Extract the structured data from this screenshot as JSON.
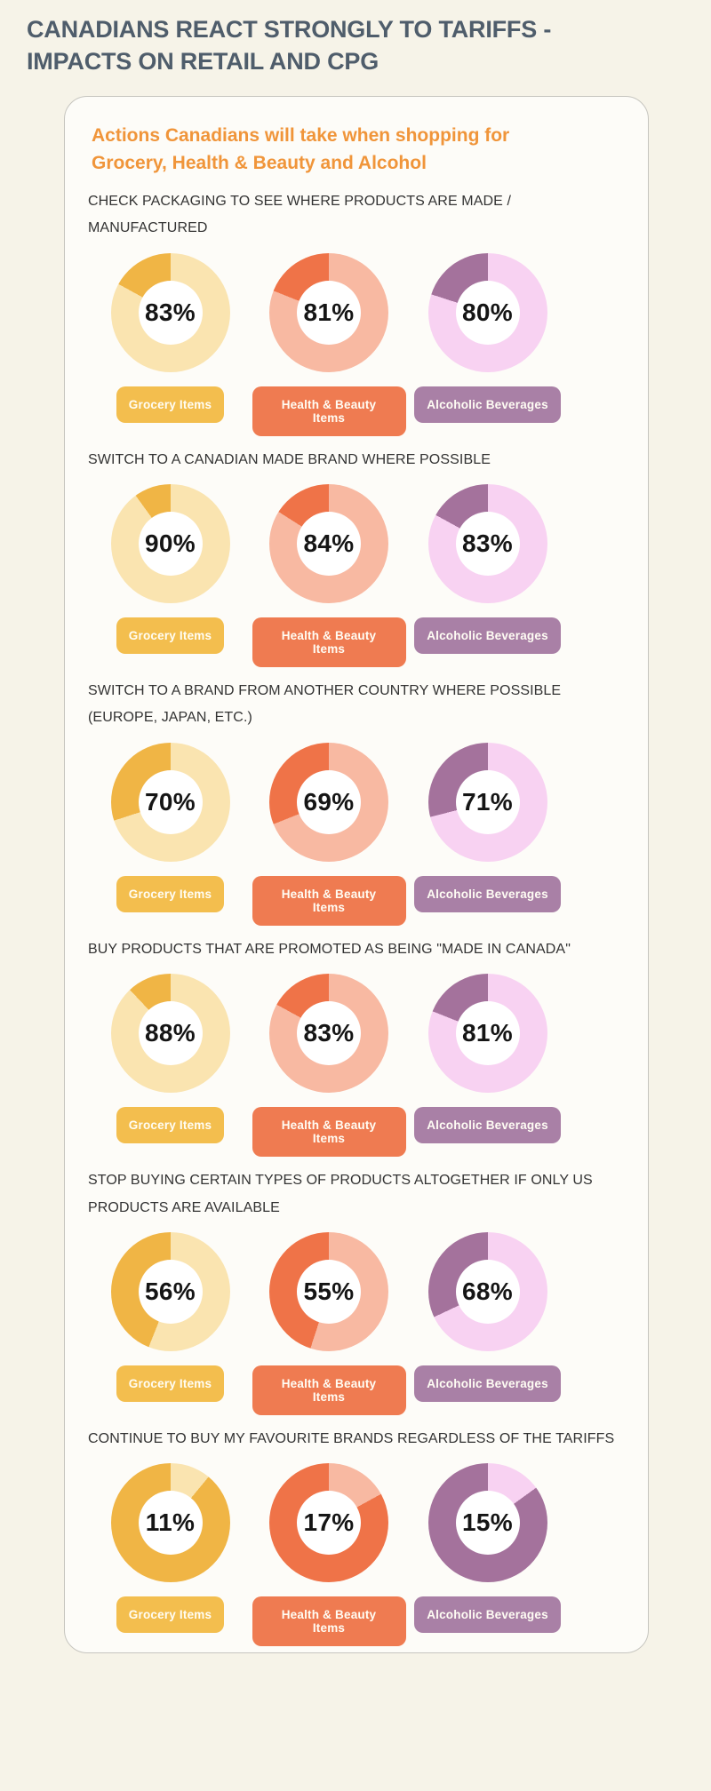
{
  "title": {
    "lines": [
      "CANADIANS REACT STRONGLY TO TARIFFS -",
      "IMPACTS ON RETAIL AND CPG"
    ]
  },
  "card": {
    "heading_lines": [
      "Actions Canadians will take when shopping for",
      "Grocery, Health & Beauty and Alcohol"
    ]
  },
  "colors": {
    "page_bg": "#F6F3E8",
    "card_bg": "#FDFCF8",
    "card_border": "#C6C5BF",
    "title_text": "#4F5D6B",
    "heading_text": "#F0953A",
    "caption_text": "#333333",
    "value_text": "#151515",
    "badge_text": "#FFFDF4"
  },
  "categories": [
    {
      "label": "Grocery Items",
      "segment_dark": "#F0B545",
      "segment_light": "#FAE4B0",
      "badge_bg": "#F3BE4E"
    },
    {
      "label": "Health & Beauty Items",
      "segment_dark": "#EF7348",
      "segment_light": "#F8B9A2",
      "badge_bg": "#EF7B51"
    },
    {
      "label": "Alcoholic Beverages",
      "segment_dark": "#A4729C",
      "segment_light": "#F8D2F2",
      "badge_bg": "#A980A6"
    }
  ],
  "chart_data": {
    "type": "pie",
    "subtype": "donut-grid",
    "title": "Actions Canadians will take when shopping for Grocery, Health & Beauty and Alcohol",
    "unit": "%",
    "fill_rule": "light segment = value, drawn clockwise from 12 o'clock; dark segment = remainder",
    "legend_position": "badge below each donut",
    "categories": [
      "Grocery Items",
      "Health & Beauty Items",
      "Alcoholic Beverages"
    ],
    "rows": [
      {
        "caption_lines": [
          "CHECK PACKAGING TO SEE WHERE PRODUCTS ARE MADE /",
          "MANUFACTURED"
        ],
        "values": [
          83,
          81,
          80
        ]
      },
      {
        "caption_lines": [
          "SWITCH TO A CANADIAN MADE BRAND WHERE POSSIBLE"
        ],
        "values": [
          90,
          84,
          83
        ]
      },
      {
        "caption_lines": [
          "SWITCH TO A BRAND FROM ANOTHER COUNTRY WHERE POSSIBLE",
          "(EUROPE, JAPAN, ETC.)"
        ],
        "values": [
          70,
          69,
          71
        ]
      },
      {
        "caption_lines": [
          "BUY PRODUCTS THAT ARE PROMOTED AS BEING \"MADE IN CANADA\""
        ],
        "values": [
          88,
          83,
          81
        ]
      },
      {
        "caption_lines": [
          "STOP BUYING CERTAIN TYPES OF PRODUCTS ALTOGETHER IF ONLY US",
          "PRODUCTS ARE AVAILABLE"
        ],
        "values": [
          56,
          55,
          68
        ]
      },
      {
        "caption_lines": [
          "CONTINUE TO BUY MY FAVOURITE BRANDS REGARDLESS OF THE TARIFFS"
        ],
        "values": [
          11,
          17,
          15
        ]
      }
    ]
  }
}
